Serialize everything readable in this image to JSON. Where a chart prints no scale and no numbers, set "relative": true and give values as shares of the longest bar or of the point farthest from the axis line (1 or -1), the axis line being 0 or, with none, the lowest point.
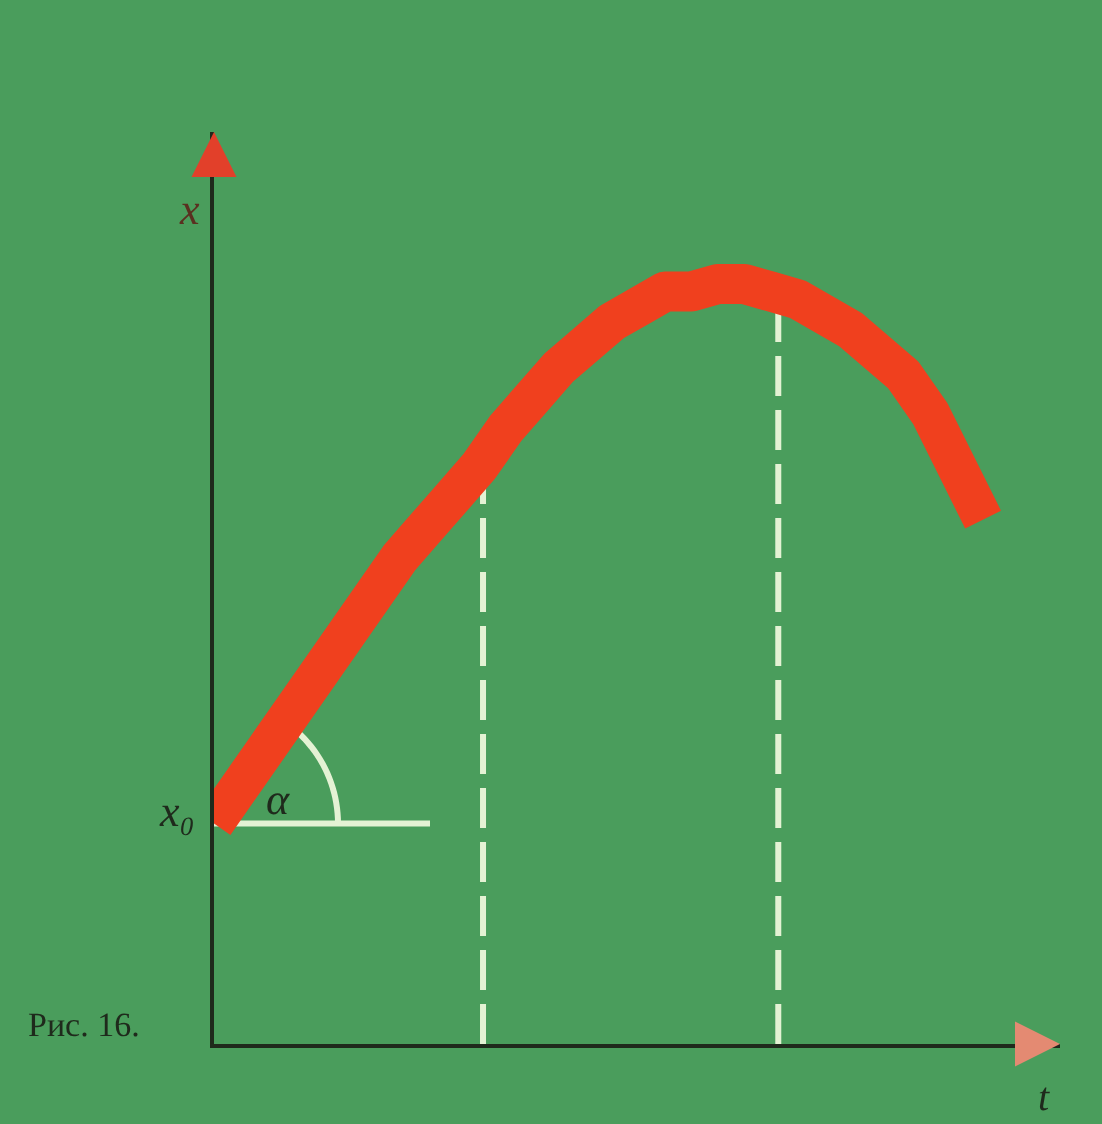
{
  "chart_data": {
    "type": "line",
    "relative": true,
    "xlabel": "t",
    "ylabel": "x",
    "categories": [
      null,
      null,
      null,
      null,
      null,
      null,
      null,
      null,
      null,
      null,
      null,
      null,
      null,
      null,
      null,
      null,
      null,
      null,
      null,
      null,
      null,
      null,
      null,
      null,
      null,
      null,
      null,
      null,
      null,
      null
    ],
    "series": [
      {
        "color": "#f0401e",
        "values": [
          0.29,
          0.34,
          0.39,
          0.44,
          0.49,
          0.54,
          0.59,
          0.64,
          0.68,
          0.72,
          0.76,
          0.81,
          0.85,
          0.89,
          0.92,
          0.95,
          0.97,
          0.99,
          0.99,
          1.0,
          1.0,
          0.99,
          0.98,
          0.96,
          0.94,
          0.91,
          0.88,
          0.83,
          0.76,
          0.69
        ]
      }
    ],
    "annotations": [
      "Рис. 16.",
      "α",
      "x₀"
    ]
  }
}
